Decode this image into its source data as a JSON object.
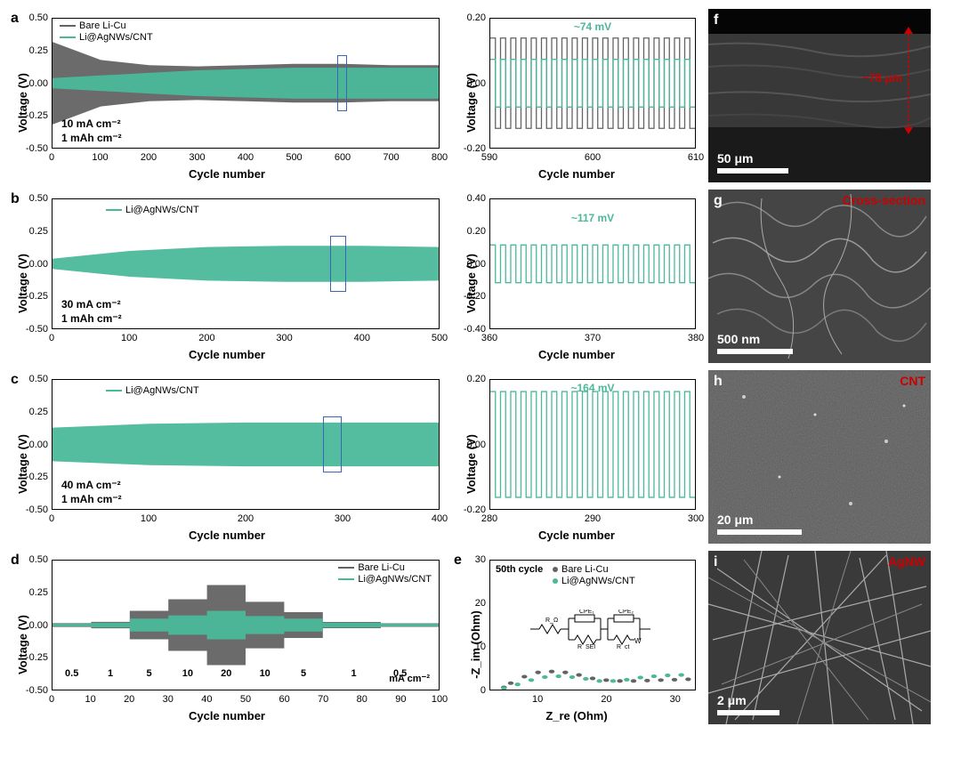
{
  "colors": {
    "bare": "#636363",
    "liag": "#4bb89a",
    "zoom_box": "#3a66b5",
    "red_label": "#cc0000",
    "axis": "#000000",
    "bg": "#ffffff",
    "sem_bg": "#2a2a2a"
  },
  "panel_a": {
    "letter": "a",
    "ylabel": "Voltage (V)",
    "xlabel": "Cycle number",
    "ylim": [
      -0.5,
      0.5
    ],
    "yticks": [
      -0.5,
      -0.25,
      0.0,
      0.25,
      0.5
    ],
    "xlim": [
      0,
      800
    ],
    "xticks": [
      0,
      100,
      200,
      300,
      400,
      500,
      600,
      700,
      800
    ],
    "legend": [
      {
        "label": "Bare Li-Cu",
        "color": "#636363"
      },
      {
        "label": "Li@AgNWs/CNT",
        "color": "#4bb89a"
      }
    ],
    "cond1": "10 mA cm⁻²",
    "cond2": "1 mAh cm⁻²",
    "zoom_window": [
      590,
      610
    ],
    "bare_envelope": [
      0.32,
      0.18,
      0.14,
      0.13,
      0.14,
      0.15,
      0.15,
      0.14,
      0.14
    ],
    "liag_envelope": [
      0.04,
      0.06,
      0.08,
      0.1,
      0.11,
      0.12,
      0.12,
      0.12,
      0.12
    ]
  },
  "panel_a_zoom": {
    "ylabel": "Voltage (V)",
    "xlabel": "Cycle number",
    "ylim": [
      -0.2,
      0.2
    ],
    "yticks": [
      -0.2,
      0.0,
      0.2
    ],
    "xlim": [
      590,
      610
    ],
    "xticks": [
      590,
      600,
      610
    ],
    "annotation": "~74 mV",
    "annotation_color": "#4bb89a",
    "bare_amp": 0.14,
    "liag_amp": 0.074,
    "cycles": 20
  },
  "panel_b": {
    "letter": "b",
    "ylabel": "Voltage (V)",
    "xlabel": "Cycle number",
    "ylim": [
      -0.5,
      0.5
    ],
    "yticks": [
      -0.5,
      -0.25,
      0.0,
      0.25,
      0.5
    ],
    "xlim": [
      0,
      500
    ],
    "xticks": [
      0,
      100,
      200,
      300,
      400,
      500
    ],
    "legend": [
      {
        "label": "Li@AgNWs/CNT",
        "color": "#4bb89a"
      }
    ],
    "cond1": "30 mA cm⁻²",
    "cond2": "1 mAh cm⁻²",
    "zoom_window": [
      360,
      380
    ],
    "liag_envelope": [
      0.04,
      0.1,
      0.13,
      0.14,
      0.14,
      0.13
    ]
  },
  "panel_b_zoom": {
    "ylabel": "Voltage (V)",
    "xlabel": "Cycle number",
    "ylim": [
      -0.4,
      0.4
    ],
    "yticks": [
      -0.4,
      -0.2,
      0.0,
      0.2,
      0.4
    ],
    "xlim": [
      360,
      380
    ],
    "xticks": [
      360,
      370,
      380
    ],
    "annotation": "~117 mV",
    "annotation_color": "#4bb89a",
    "liag_amp": 0.117,
    "cycles": 20
  },
  "panel_c": {
    "letter": "c",
    "ylabel": "Voltage (V)",
    "xlabel": "Cycle number",
    "ylim": [
      -0.5,
      0.5
    ],
    "yticks": [
      -0.5,
      -0.25,
      0.0,
      0.25,
      0.5
    ],
    "xlim": [
      0,
      400
    ],
    "xticks": [
      0,
      100,
      200,
      300,
      400
    ],
    "legend": [
      {
        "label": "Li@AgNWs/CNT",
        "color": "#4bb89a"
      }
    ],
    "cond1": "40 mA cm⁻²",
    "cond2": "1 mAh cm⁻²",
    "zoom_window": [
      280,
      300
    ],
    "liag_envelope": [
      0.13,
      0.16,
      0.17,
      0.17,
      0.17
    ]
  },
  "panel_c_zoom": {
    "ylabel": "Voltage (V)",
    "xlabel": "Cycle number",
    "ylim": [
      -0.2,
      0.2
    ],
    "yticks": [
      -0.2,
      0.0,
      0.2
    ],
    "xlim": [
      280,
      300
    ],
    "xticks": [
      280,
      290,
      300
    ],
    "annotation": "~164 mV",
    "annotation_color": "#4bb89a",
    "liag_amp": 0.164,
    "cycles": 20
  },
  "panel_d": {
    "letter": "d",
    "ylabel": "Voltage (V)",
    "xlabel": "Cycle number",
    "ylim": [
      -0.5,
      0.5
    ],
    "yticks": [
      -0.5,
      -0.25,
      0.0,
      0.25,
      0.5
    ],
    "xlim": [
      0,
      100
    ],
    "xticks": [
      0,
      10,
      20,
      30,
      40,
      50,
      60,
      70,
      80,
      90,
      100
    ],
    "legend": [
      {
        "label": "Bare Li-Cu",
        "color": "#636363"
      },
      {
        "label": "Li@AgNWs/CNT",
        "color": "#4bb89a"
      }
    ],
    "rates": [
      {
        "x": 5,
        "label": "0.5"
      },
      {
        "x": 15,
        "label": "1"
      },
      {
        "x": 25,
        "label": "5"
      },
      {
        "x": 35,
        "label": "10"
      },
      {
        "x": 45,
        "label": "20"
      },
      {
        "x": 55,
        "label": "10"
      },
      {
        "x": 65,
        "label": "5"
      },
      {
        "x": 78,
        "label": "1"
      },
      {
        "x": 90,
        "label": "0.5"
      }
    ],
    "unit": "mA cm⁻²",
    "bare_amps": [
      0.015,
      0.025,
      0.11,
      0.2,
      0.31,
      0.18,
      0.1,
      0.024,
      0.014
    ],
    "liag_amps": [
      0.01,
      0.018,
      0.05,
      0.075,
      0.11,
      0.07,
      0.05,
      0.018,
      0.01
    ],
    "segments": [
      [
        0,
        10
      ],
      [
        10,
        20
      ],
      [
        20,
        30
      ],
      [
        30,
        40
      ],
      [
        40,
        50
      ],
      [
        50,
        60
      ],
      [
        60,
        70
      ],
      [
        70,
        85
      ],
      [
        85,
        100
      ]
    ]
  },
  "panel_e": {
    "letter": "e",
    "ylabel": "-Z_im (Ohm)",
    "xlabel": "Z_re (Ohm)",
    "ylim": [
      0,
      30
    ],
    "yticks": [
      0,
      10,
      20,
      30
    ],
    "xlim": [
      3,
      33
    ],
    "xticks": [
      10,
      20,
      30
    ],
    "title": "50th cycle",
    "legend": [
      {
        "label": "Bare Li-Cu",
        "color": "#636363",
        "marker": true
      },
      {
        "label": "Li@AgNWs/CNT",
        "color": "#4bb89a",
        "marker": true
      }
    ],
    "bare_points": [
      [
        5,
        0.5
      ],
      [
        6,
        1.5
      ],
      [
        8,
        3
      ],
      [
        10,
        4
      ],
      [
        12,
        4.2
      ],
      [
        14,
        4
      ],
      [
        16,
        3.4
      ],
      [
        18,
        2.6
      ],
      [
        20,
        2.2
      ],
      [
        22,
        2.0
      ],
      [
        24,
        2.0
      ],
      [
        26,
        2.1
      ],
      [
        28,
        2.2
      ],
      [
        30,
        2.3
      ],
      [
        32,
        2.4
      ]
    ],
    "liag_points": [
      [
        5,
        0.3
      ],
      [
        7,
        1.2
      ],
      [
        9,
        2.2
      ],
      [
        11,
        2.9
      ],
      [
        13,
        3.1
      ],
      [
        15,
        2.9
      ],
      [
        17,
        2.5
      ],
      [
        19,
        2.0
      ],
      [
        21,
        2.0
      ],
      [
        23,
        2.3
      ],
      [
        25,
        2.8
      ],
      [
        27,
        3.1
      ],
      [
        29,
        3.3
      ],
      [
        31,
        3.4
      ]
    ],
    "circuit_labels": [
      "R_Ω",
      "R_SEI",
      "CPE₁",
      "R_ct",
      "CPE₂",
      "W"
    ]
  },
  "panel_f": {
    "letter": "f",
    "label": "",
    "scale": "50 μm",
    "scale_width": 80,
    "measurement": "~78 μm"
  },
  "panel_g": {
    "letter": "g",
    "label": "Cross-section",
    "scale": "500 nm",
    "scale_width": 85
  },
  "panel_h": {
    "letter": "h",
    "label": "CNT",
    "scale": "20 μm",
    "scale_width": 95
  },
  "panel_i": {
    "letter": "i",
    "label": "AgNW",
    "scale": "2 μm",
    "scale_width": 70
  }
}
